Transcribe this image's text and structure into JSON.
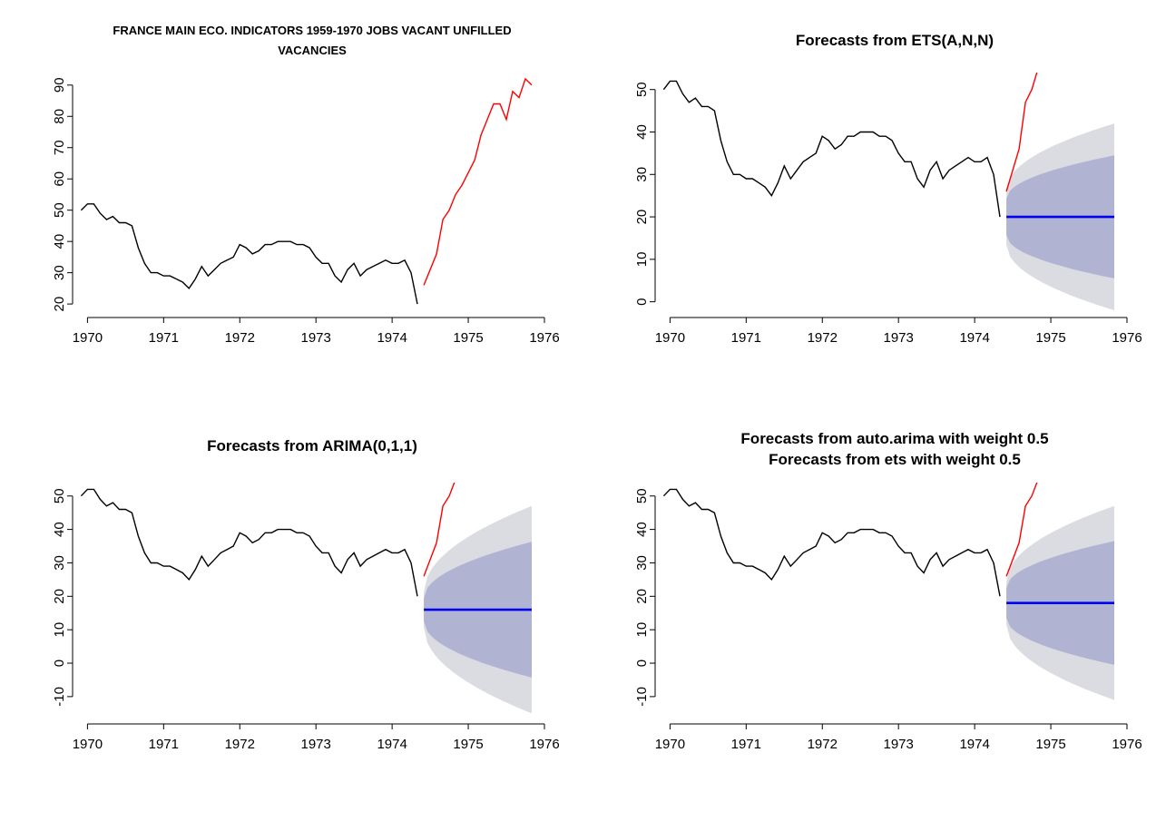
{
  "chart_data": [
    {
      "type": "line",
      "title": [
        "FRANCE MAIN ECO. INDICATORS 1959-1970 JOBS VACANT UNFILLED",
        "VACANCIES"
      ],
      "xlim": [
        1969.9,
        1976
      ],
      "ylim": [
        18,
        94
      ],
      "xticks": [
        "1970",
        "1971",
        "1972",
        "1973",
        "1974",
        "1975",
        "1976"
      ],
      "yticks": [
        "20",
        "30",
        "40",
        "50",
        "60",
        "70",
        "80",
        "90"
      ],
      "series": [
        {
          "color": "#000000",
          "x_start": 1969.917,
          "step": 0.0833,
          "values": [
            50,
            52,
            52,
            49,
            47,
            48,
            46,
            46,
            45,
            38,
            33,
            30,
            30,
            29,
            29,
            28,
            27,
            25,
            28,
            32,
            29,
            31,
            33,
            34,
            35,
            39,
            38,
            36,
            37,
            39,
            39,
            40,
            40,
            40,
            39,
            39,
            38,
            35,
            33,
            33,
            29,
            27,
            31,
            33,
            29,
            31,
            32,
            33,
            34,
            33,
            33,
            34,
            30,
            20
          ]
        },
        {
          "color": "#ff0000",
          "x_start": 1974.417,
          "step": 0.0833,
          "values": [
            26,
            31,
            36,
            47,
            50,
            55,
            58,
            62,
            66,
            74,
            79,
            84,
            84,
            79,
            88,
            86,
            92,
            90
          ]
        }
      ]
    },
    {
      "type": "line",
      "title": [
        "Forecasts from ETS(A,N,N)"
      ],
      "xlim": [
        1969.9,
        1976
      ],
      "ylim": [
        -2,
        54
      ],
      "xticks": [
        "1970",
        "1971",
        "1972",
        "1973",
        "1974",
        "1975",
        "1976"
      ],
      "yticks": [
        "0",
        "10",
        "20",
        "30",
        "40",
        "50"
      ],
      "history_color": "#000000",
      "actual_color": "#ff0000",
      "forecast_color": "#0000ee",
      "band_outer_color": "#dbdbe2",
      "band_inner_color": "#b0b4d2",
      "forecast": {
        "x_start": 1974.417,
        "x_end": 1975.833,
        "mean": 20,
        "inner_start": 4.3,
        "inner_end": 14.5,
        "outer_start": 6.5,
        "outer_end": 22
      }
    },
    {
      "type": "line",
      "title": [
        "Forecasts from ARIMA(0,1,1)"
      ],
      "xlim": [
        1969.9,
        1976
      ],
      "ylim": [
        -16,
        54
      ],
      "xticks": [
        "1970",
        "1971",
        "1972",
        "1973",
        "1974",
        "1975",
        "1976"
      ],
      "yticks": [
        "-10",
        "0",
        "10",
        "20",
        "30",
        "40",
        "50"
      ],
      "history_color": "#000000",
      "actual_color": "#ff0000",
      "forecast_color": "#0000ee",
      "band_outer_color": "#dbdbe2",
      "band_inner_color": "#b0b4d2",
      "forecast": {
        "x_start": 1974.417,
        "x_end": 1975.833,
        "mean": 16,
        "inner_start": 3.5,
        "inner_end": 20.3,
        "outer_start": 5.3,
        "outer_end": 31
      }
    },
    {
      "type": "line",
      "title": [
        "Forecasts from auto.arima with weight 0.5",
        "Forecasts from ets with weight 0.5"
      ],
      "xlim": [
        1969.9,
        1976
      ],
      "ylim": [
        -16,
        54
      ],
      "xticks": [
        "1970",
        "1971",
        "1972",
        "1973",
        "1974",
        "1975",
        "1976"
      ],
      "yticks": [
        "-10",
        "0",
        "10",
        "20",
        "30",
        "40",
        "50"
      ],
      "history_color": "#000000",
      "actual_color": "#ff0000",
      "forecast_color": "#0000ee",
      "band_outer_color": "#dbdbe2",
      "band_inner_color": "#b0b4d2",
      "forecast": {
        "x_start": 1974.417,
        "x_end": 1975.833,
        "mean": 18,
        "inner_start": 4.5,
        "inner_end": 18.5,
        "outer_start": 6.5,
        "outer_end": 29
      }
    }
  ]
}
